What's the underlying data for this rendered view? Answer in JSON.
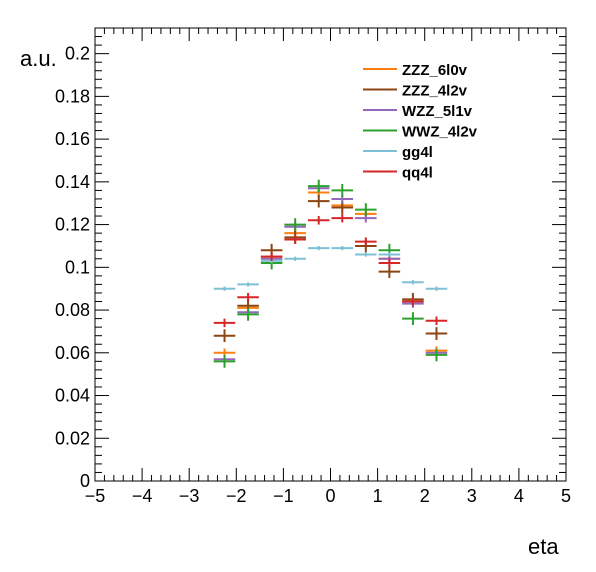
{
  "chart_data": {
    "type": "scatter",
    "title": "",
    "xlabel": "eta",
    "ylabel": "a.u.",
    "xlim": [
      -5,
      5
    ],
    "ylim": [
      0,
      0.212
    ],
    "grid": false,
    "legend_position": "top-right",
    "x_ticks": [
      {
        "value": -5,
        "label": "−5"
      },
      {
        "value": -4,
        "label": "−4"
      },
      {
        "value": -3,
        "label": "−3"
      },
      {
        "value": -2,
        "label": "−2"
      },
      {
        "value": -1,
        "label": "−1"
      },
      {
        "value": 0,
        "label": "0"
      },
      {
        "value": 1,
        "label": "1"
      },
      {
        "value": 2,
        "label": "2"
      },
      {
        "value": 3,
        "label": "3"
      },
      {
        "value": 4,
        "label": "4"
      },
      {
        "value": 5,
        "label": "5"
      }
    ],
    "y_ticks": [
      {
        "value": 0,
        "label": "0"
      },
      {
        "value": 0.02,
        "label": "0.02"
      },
      {
        "value": 0.04,
        "label": "0.04"
      },
      {
        "value": 0.06,
        "label": "0.06"
      },
      {
        "value": 0.08,
        "label": "0.08"
      },
      {
        "value": 0.1,
        "label": "0.1"
      },
      {
        "value": 0.12,
        "label": "0.12"
      },
      {
        "value": 0.14,
        "label": "0.14"
      },
      {
        "value": 0.16,
        "label": "0.16"
      },
      {
        "value": 0.18,
        "label": "0.18"
      },
      {
        "value": 0.2,
        "label": "0.2"
      }
    ],
    "bin_edges": [
      -2.5,
      -2.0,
      -1.5,
      -1.0,
      -0.5,
      0.0,
      0.5,
      1.0,
      1.5,
      2.0,
      2.5
    ],
    "series": [
      {
        "name": "ZZZ_6l0v",
        "color": "#ff7f0e",
        "values": [
          0.06,
          0.081,
          0.105,
          0.116,
          0.135,
          0.129,
          0.125,
          0.104,
          0.084,
          0.061
        ],
        "errors": [
          0.002,
          0.002,
          0.002,
          0.002,
          0.002,
          0.002,
          0.002,
          0.002,
          0.002,
          0.002
        ]
      },
      {
        "name": "ZZZ_4l2v",
        "color": "#8b4513",
        "values": [
          0.068,
          0.082,
          0.108,
          0.114,
          0.131,
          0.128,
          0.11,
          0.098,
          0.085,
          0.069
        ],
        "errors": [
          0.003,
          0.003,
          0.003,
          0.003,
          0.003,
          0.003,
          0.003,
          0.003,
          0.003,
          0.003
        ]
      },
      {
        "name": "WZZ_5l1v",
        "color": "#9467bd",
        "values": [
          0.057,
          0.079,
          0.104,
          0.119,
          0.137,
          0.132,
          0.123,
          0.104,
          0.083,
          0.06
        ],
        "errors": [
          0.002,
          0.002,
          0.002,
          0.002,
          0.002,
          0.002,
          0.002,
          0.002,
          0.002,
          0.002
        ]
      },
      {
        "name": "WWZ_4l2v",
        "color": "#2ca02c",
        "values": [
          0.056,
          0.078,
          0.102,
          0.12,
          0.138,
          0.136,
          0.127,
          0.108,
          0.076,
          0.059
        ],
        "errors": [
          0.003,
          0.003,
          0.003,
          0.003,
          0.003,
          0.003,
          0.003,
          0.003,
          0.003,
          0.003
        ]
      },
      {
        "name": "gg4l",
        "color": "#7ec0d6",
        "values": [
          0.09,
          0.092,
          0.103,
          0.104,
          0.109,
          0.109,
          0.106,
          0.106,
          0.093,
          0.09
        ],
        "errors": [
          0.001,
          0.001,
          0.001,
          0.001,
          0.001,
          0.001,
          0.001,
          0.001,
          0.001,
          0.001
        ]
      },
      {
        "name": "qq4l",
        "color": "#d62728",
        "values": [
          0.074,
          0.086,
          0.105,
          0.113,
          0.122,
          0.123,
          0.112,
          0.102,
          0.084,
          0.075
        ],
        "errors": [
          0.002,
          0.002,
          0.002,
          0.002,
          0.002,
          0.002,
          0.002,
          0.002,
          0.002,
          0.002
        ]
      }
    ]
  }
}
